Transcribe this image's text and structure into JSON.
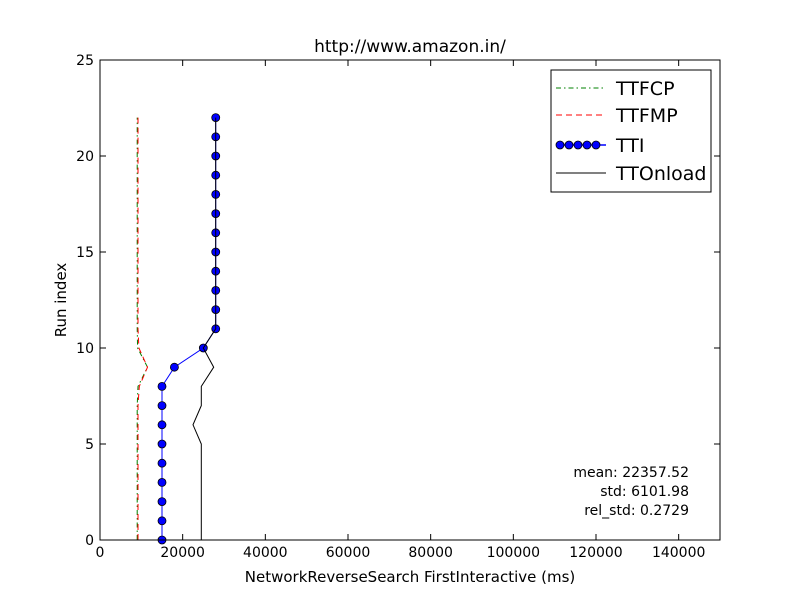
{
  "chart_data": {
    "type": "line",
    "title": "http://www.amazon.in/",
    "xlabel": "NetworkReverseSearch FirstInteractive (ms)",
    "ylabel": "Run index",
    "xlim": [
      0,
      150000
    ],
    "ylim": [
      0,
      25
    ],
    "xticks": [
      "0",
      "20000",
      "40000",
      "60000",
      "80000",
      "100000",
      "120000",
      "140000"
    ],
    "yticks": [
      "0",
      "5",
      "10",
      "15",
      "20",
      "25"
    ],
    "grid": false,
    "legend": "top-right",
    "y": [
      0,
      1,
      2,
      3,
      4,
      5,
      6,
      7,
      8,
      9,
      10,
      11,
      12,
      13,
      14,
      15,
      16,
      17,
      18,
      19,
      20,
      21,
      22
    ],
    "series": [
      {
        "name": "TTFCP",
        "color": "#008000",
        "style": "dash-dot",
        "x": [
          9000,
          9000,
          9000,
          9000,
          9000,
          9000,
          9000,
          9000,
          9200,
          11500,
          9100,
          9000,
          9000,
          9000,
          9000,
          9000,
          9000,
          9000,
          9000,
          9000,
          9000,
          9000,
          9000
        ]
      },
      {
        "name": "TTFMP",
        "color": "#ff0000",
        "style": "dashed",
        "x": [
          9200,
          9200,
          9200,
          9200,
          9200,
          9200,
          9200,
          9200,
          9500,
          11500,
          9400,
          9200,
          9200,
          9200,
          9200,
          9200,
          9200,
          9200,
          9200,
          9200,
          9200,
          9200,
          9200
        ]
      },
      {
        "name": "TTI",
        "color": "#0000ff",
        "style": "solid-marker",
        "x": [
          15000,
          15000,
          15000,
          15000,
          15000,
          15000,
          15000,
          15000,
          15000,
          18000,
          25000,
          28000,
          28000,
          28000,
          28000,
          28000,
          28000,
          28000,
          28000,
          28000,
          28000,
          28000,
          28000
        ]
      },
      {
        "name": "TTOnload",
        "color": "#000000",
        "style": "solid",
        "x": [
          24500,
          24500,
          24500,
          24500,
          24500,
          24500,
          22500,
          24500,
          24500,
          27500,
          25000,
          28000,
          28000,
          28000,
          28000,
          28000,
          28000,
          28000,
          28000,
          28000,
          28000,
          28000,
          28000
        ]
      }
    ],
    "annotations": [
      "mean: 22357.52",
      "std: 6101.98",
      "rel_std: 0.2729"
    ]
  }
}
